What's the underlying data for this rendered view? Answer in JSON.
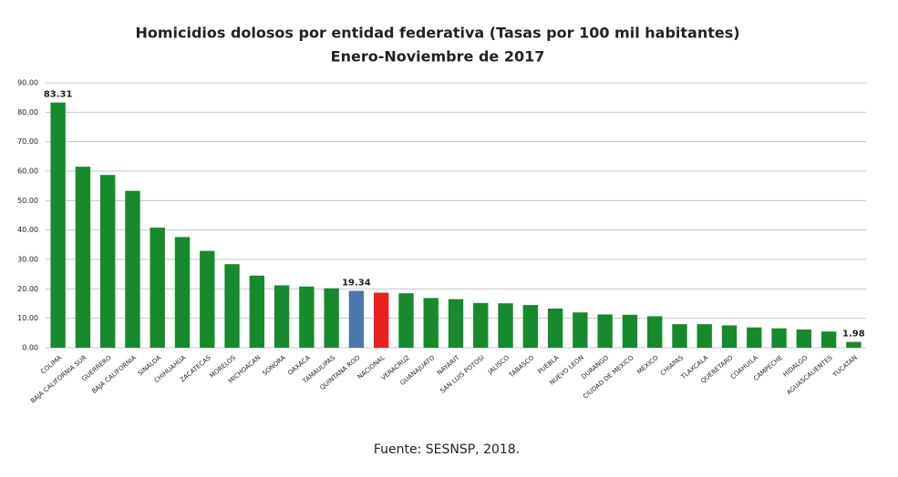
{
  "chart_data": {
    "type": "bar",
    "title": "Homicidios dolosos por entidad federativa (Tasas por 100 mil habitantes)",
    "subtitle": "Enero-Noviembre de 2017",
    "source": "Fuente: SESNSP, 2018.",
    "categories": [
      "COLIMA",
      "BAJA CALIFORNIA SUR",
      "GUERRERO",
      "BAJA CALIFORNIA",
      "SINALOA",
      "CHIHUAHUA",
      "ZACATECAS",
      "MORELOS",
      "MICHOACAN",
      "SONORA",
      "OAXACA",
      "TAMAULIPAS",
      "QUINTANA ROO",
      "NACIONAL",
      "VERACRUZ",
      "GUANAJUATO",
      "NAYARIT",
      "SAN LUIS POTOSI",
      "JALISCO",
      "TABASCO",
      "PUEBLA",
      "NUEVO LEON",
      "DURANGO",
      "CIUDAD DE MEXICO",
      "MEXICO",
      "CHIAPAS",
      "TLAXCALA",
      "QUERETARO",
      "COAHUILA",
      "CAMPECHE",
      "HIDALGO",
      "AGUASCALIENTES",
      "YUCATAN"
    ],
    "values": [
      83.31,
      61.5,
      58.7,
      53.3,
      40.8,
      37.6,
      32.9,
      28.4,
      24.5,
      21.2,
      20.8,
      20.2,
      19.34,
      18.7,
      18.5,
      16.9,
      16.5,
      15.2,
      15.1,
      14.5,
      13.3,
      12.0,
      11.3,
      11.2,
      10.7,
      8.0,
      8.0,
      7.6,
      6.9,
      6.6,
      6.2,
      5.5,
      1.98
    ],
    "value_labels": [
      "83.31",
      null,
      null,
      null,
      null,
      null,
      null,
      null,
      null,
      null,
      null,
      null,
      "19.34",
      null,
      null,
      null,
      null,
      null,
      null,
      null,
      null,
      null,
      null,
      null,
      null,
      null,
      null,
      null,
      null,
      null,
      null,
      null,
      "1.98"
    ],
    "colors": [
      "#168a2c",
      "#168a2c",
      "#168a2c",
      "#168a2c",
      "#168a2c",
      "#168a2c",
      "#168a2c",
      "#168a2c",
      "#168a2c",
      "#168a2c",
      "#168a2c",
      "#168a2c",
      "#4a78ad",
      "#e8211f",
      "#168a2c",
      "#168a2c",
      "#168a2c",
      "#168a2c",
      "#168a2c",
      "#168a2c",
      "#168a2c",
      "#168a2c",
      "#168a2c",
      "#168a2c",
      "#168a2c",
      "#168a2c",
      "#168a2c",
      "#168a2c",
      "#168a2c",
      "#168a2c",
      "#168a2c",
      "#168a2c",
      "#168a2c"
    ],
    "ylim": [
      0,
      90
    ],
    "yticks": [
      {
        "value": 0,
        "label": "0.00"
      },
      {
        "value": 10,
        "label": "10.00"
      },
      {
        "value": 20,
        "label": "20.00"
      },
      {
        "value": 30,
        "label": "30.00"
      },
      {
        "value": 40,
        "label": "40.00"
      },
      {
        "value": 50,
        "label": "50.00"
      },
      {
        "value": 60,
        "label": "60.00"
      },
      {
        "value": 70,
        "label": "70.00"
      },
      {
        "value": 80,
        "label": "80.00"
      },
      {
        "value": 90,
        "label": "90.00"
      }
    ],
    "grid": true
  }
}
